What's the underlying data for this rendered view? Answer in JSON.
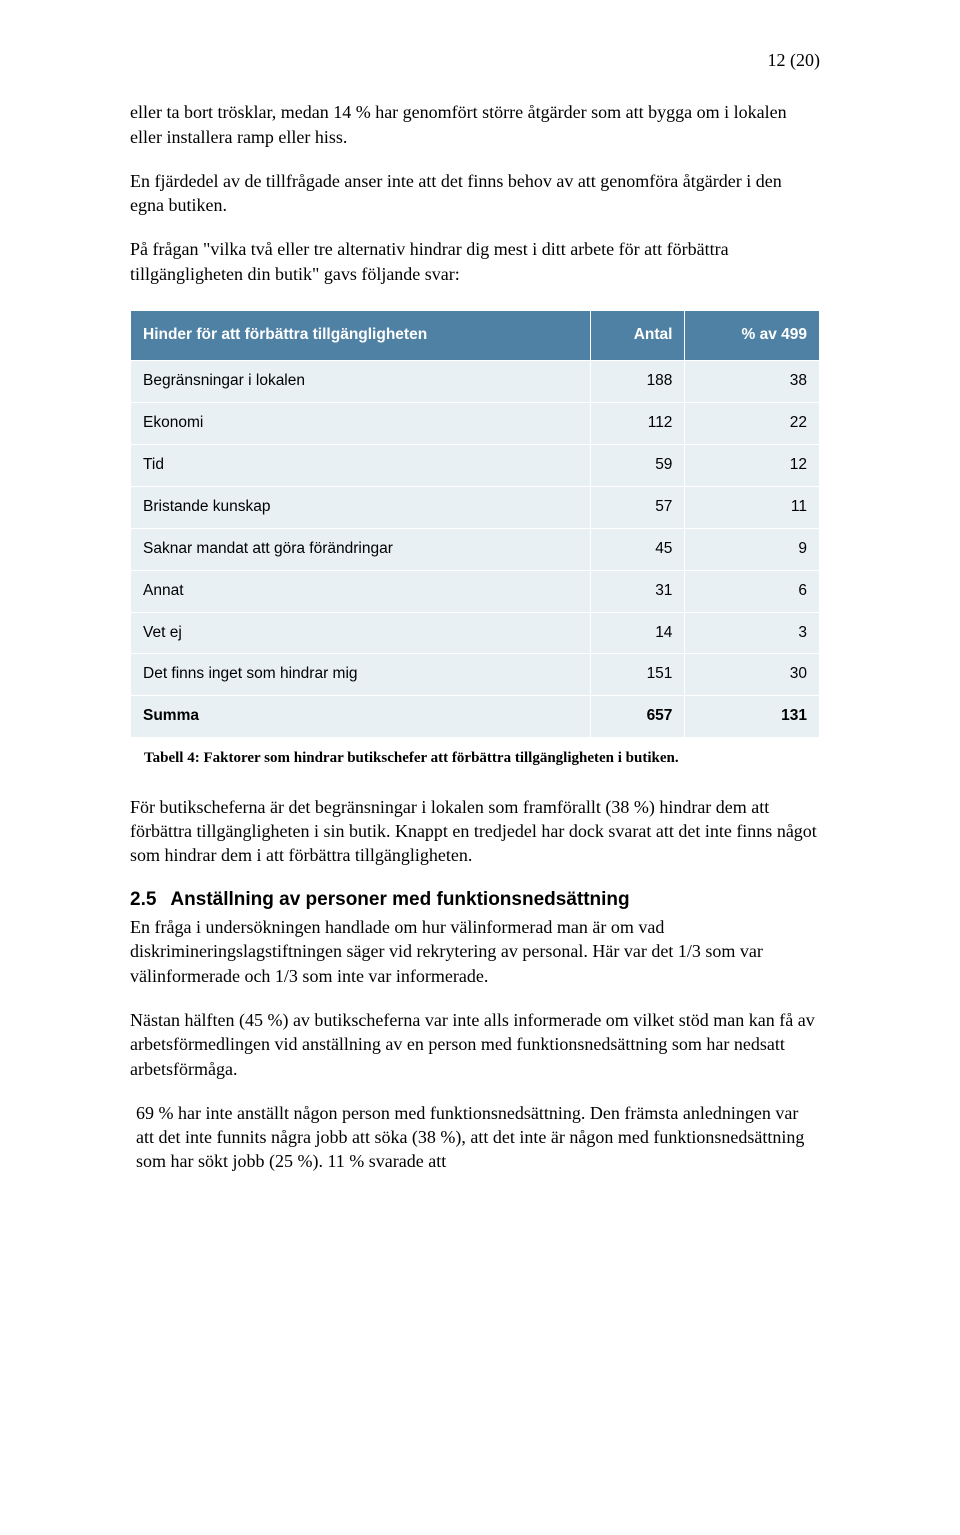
{
  "page_number": "12 (20)",
  "paragraphs": {
    "p1": "eller ta bort trösklar, medan 14 % har genomfört större åtgärder som att bygga om i lokalen eller installera ramp eller hiss.",
    "p2": "En fjärdedel av de tillfrågade anser inte att det finns behov av att genomföra åtgärder i den egna butiken.",
    "p3": "På frågan \"vilka två eller tre alternativ hindrar dig mest i ditt arbete för att förbättra tillgängligheten din butik\" gavs följande svar:",
    "p4": "För butikscheferna är det begränsningar i lokalen som framförallt (38 %) hindrar dem att förbättra tillgängligheten i sin butik. Knappt en tredjedel har dock svarat att det inte finns något som hindrar dem i att förbättra tillgängligheten.",
    "p5": "En fråga i undersökningen handlade om hur välinformerad man är om vad diskrimineringslagstiftningen säger vid rekrytering av personal. Här var det 1/3 som var välinformerade och 1/3 som inte var informerade.",
    "p6": "Nästan hälften (45 %) av butikscheferna var inte alls informerade om vilket stöd man kan få av arbetsförmedlingen vid anställning av en person med funktionsnedsättning som har nedsatt arbetsförmåga.",
    "p7": " 69 % har inte anställt någon person med funktionsnedsättning. Den främsta anledningen var att det inte funnits några jobb att söka (38 %), att det inte är någon med funktionsnedsättning som har sökt jobb (25 %). 11 % svarade att"
  },
  "section": {
    "number": "2.5",
    "title": "Anställning av personer med funktionsnedsättning"
  },
  "table": {
    "caption": "Tabell 4: Faktorer som hindrar butikschefer att förbättra tillgängligheten i butiken.",
    "header_bg": "#4f81a5",
    "row_bg": "#e8f0f4",
    "columns": [
      "Hinder för att förbättra tillgängligheten",
      "Antal",
      "% av 499"
    ],
    "rows": [
      {
        "label": "Begränsningar i lokalen",
        "antal": "188",
        "pct": "38"
      },
      {
        "label": "Ekonomi",
        "antal": "112",
        "pct": "22"
      },
      {
        "label": "Tid",
        "antal": "59",
        "pct": "12"
      },
      {
        "label": "Bristande kunskap",
        "antal": "57",
        "pct": "11"
      },
      {
        "label": "Saknar mandat att göra förändringar",
        "antal": "45",
        "pct": "9"
      },
      {
        "label": "Annat",
        "antal": "31",
        "pct": "6"
      },
      {
        "label": "Vet ej",
        "antal": "14",
        "pct": "3"
      },
      {
        "label": "Det finns inget som hindrar mig",
        "antal": "151",
        "pct": "30"
      }
    ],
    "summary": {
      "label": "Summa",
      "antal": "657",
      "pct": "131"
    }
  }
}
